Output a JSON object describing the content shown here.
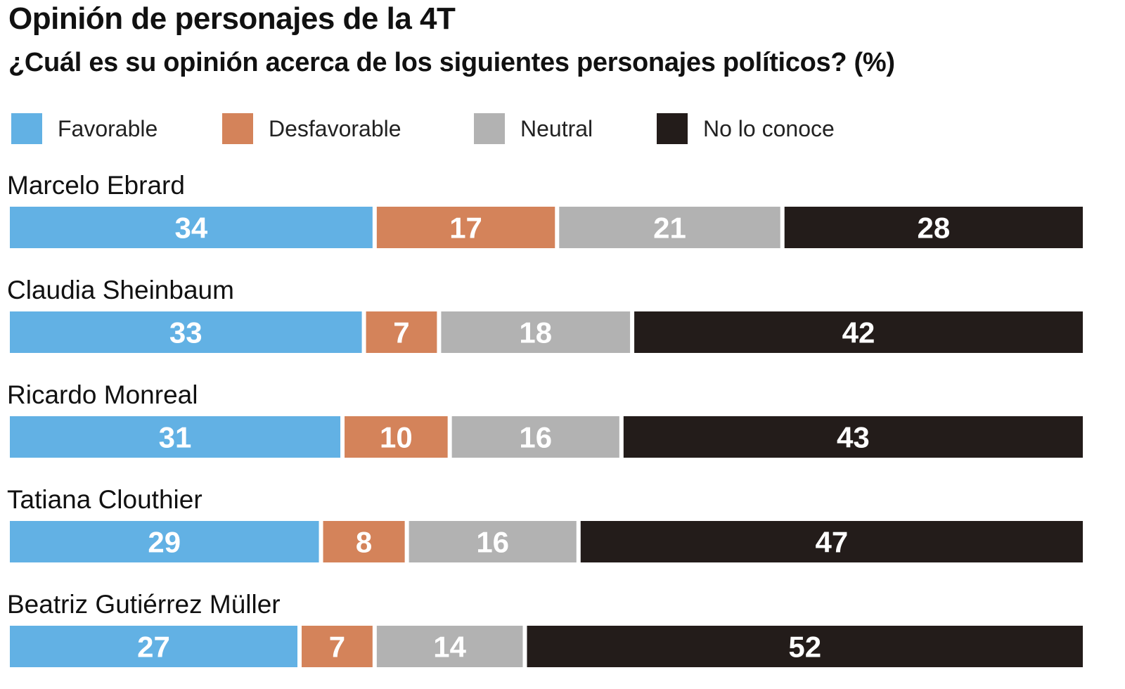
{
  "header": {
    "title": "Opinión de personajes de la 4T",
    "subtitle": "¿Cuál es su opinión acerca de los siguientes personajes políticos? (%)"
  },
  "legend": [
    {
      "label": "Favorable",
      "color": "#62b1e4"
    },
    {
      "label": "Desfavorable",
      "color": "#d4835a"
    },
    {
      "label": "Neutral",
      "color": "#b2b2b2"
    },
    {
      "label": "No lo conoce",
      "color": "#231c1a"
    }
  ],
  "chart_data": {
    "type": "bar",
    "orientation": "horizontal",
    "stacked": true,
    "title": "Opinión de personajes de la 4T",
    "subtitle": "¿Cuál es su opinión acerca de los siguientes personajes políticos? (%)",
    "categories": [
      "Marcelo Ebrard",
      "Claudia Sheinbaum",
      "Ricardo Monreal",
      "Tatiana Clouthier",
      "Beatriz Gutiérrez Müller"
    ],
    "series": [
      {
        "name": "Favorable",
        "values": [
          34,
          33,
          31,
          29,
          27
        ],
        "color": "#62b1e4"
      },
      {
        "name": "Desfavorable",
        "values": [
          17,
          7,
          10,
          8,
          7
        ],
        "color": "#d4835a"
      },
      {
        "name": "Neutral",
        "values": [
          21,
          18,
          16,
          16,
          14
        ],
        "color": "#b2b2b2"
      },
      {
        "name": "No lo conoce",
        "values": [
          28,
          42,
          43,
          47,
          52
        ],
        "color": "#231c1a"
      }
    ],
    "xlim": [
      0,
      100
    ],
    "unit": "%",
    "grid": false,
    "legend_position": "top"
  }
}
